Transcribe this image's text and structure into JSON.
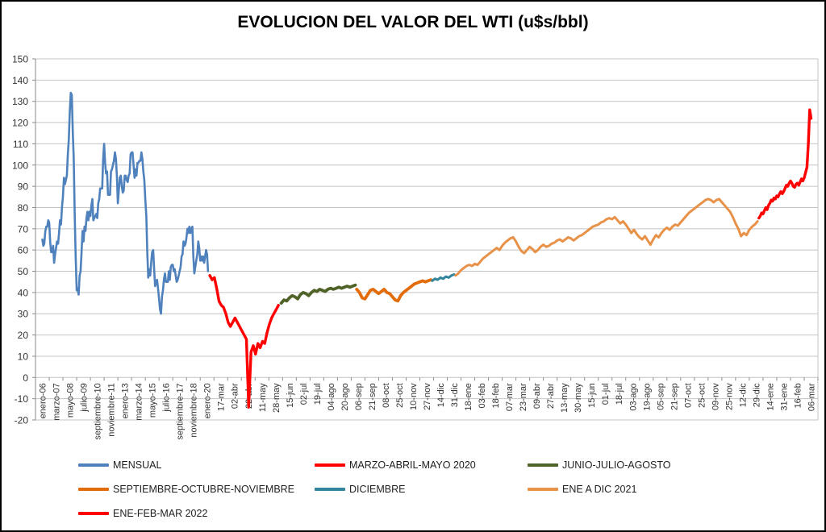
{
  "chart_data": {
    "type": "line",
    "title": "EVOLUCION DEL VALOR DEL WTI (u$s/bbl)",
    "ylabel": "",
    "xlabel": "",
    "ylim": [
      -20,
      150
    ],
    "grid": true,
    "legend_position": "bottom",
    "y_axis": {
      "min": -20,
      "max": 150,
      "step": 10,
      "tick_labels": [
        "150",
        "140",
        "130",
        "120",
        "110",
        "100",
        "90",
        "80",
        "70",
        "60",
        "50",
        "40",
        "30",
        "20",
        "10",
        "0",
        "-10",
        "-20"
      ]
    },
    "x_axis": {
      "tick_labels": [
        "enero-06",
        "marzo-07",
        "mayo-08",
        "julio-09",
        "septiembre-10",
        "noviembre-11",
        "enero-13",
        "marzo-14",
        "mayo-15",
        "julio-16",
        "septiembre-17",
        "noviembre-18",
        "enero-20",
        "17-mar",
        "02-abr",
        "22-abr",
        "11-may",
        "28-may",
        "15-jun",
        "02-jul",
        "19-jul",
        "04-ago",
        "20-ago",
        "06-sep",
        "21-sep",
        "08-oct",
        "25-oct",
        "10-nov",
        "27-nov",
        "14-dic",
        "31-dic",
        "18-ene",
        "03-feb",
        "18-feb",
        "07-mar",
        "23-mar",
        "09-abr",
        "27-abr",
        "13-may",
        "30-may",
        "15-jun",
        "01-jul",
        "18-jul",
        "03-ago",
        "19-ago",
        "05-sep",
        "21-sep",
        "07-oct",
        "25-oct",
        "09-nov",
        "25-nov",
        "12-dic",
        "29-dic",
        "14-ene",
        "31-ene",
        "16-feb",
        "06-mar"
      ]
    },
    "series": [
      {
        "name": "MENSUAL",
        "color": "#4F81BD",
        "width": 2.6,
        "x0": 0,
        "dx": 0.0714286,
        "values": [
          65,
          62,
          63,
          69,
          71,
          71,
          74,
          73,
          64,
          59,
          59,
          62,
          54,
          58,
          61,
          64,
          63,
          68,
          74,
          72,
          80,
          85,
          94,
          91,
          93,
          95,
          105,
          112,
          125,
          134,
          133,
          116,
          103,
          77,
          57,
          41,
          42,
          39,
          48,
          50,
          59,
          69,
          64,
          71,
          69,
          75,
          78,
          74,
          78,
          76,
          81,
          84,
          74,
          75,
          76,
          77,
          75,
          82,
          84,
          89,
          89,
          89,
          103,
          110,
          101,
          96,
          97,
          86,
          86,
          86,
          97,
          98,
          100,
          102,
          106,
          103,
          95,
          82,
          88,
          94,
          95,
          90,
          87,
          88,
          95,
          95,
          93,
          92,
          95,
          96,
          105,
          106,
          106,
          100,
          94,
          98,
          95,
          101,
          101,
          102,
          102,
          106,
          103,
          97,
          93,
          84,
          76,
          59,
          47,
          51,
          48,
          54,
          59,
          60,
          51,
          43,
          45,
          46,
          42,
          37,
          32,
          30,
          38,
          41,
          46,
          49,
          45,
          45,
          45,
          50,
          46,
          52,
          53,
          53,
          50,
          51,
          48,
          45,
          46,
          48,
          50,
          52,
          57,
          58,
          64,
          62,
          63,
          66,
          70,
          68,
          71,
          68,
          70,
          71,
          57,
          49,
          52,
          55,
          58,
          64,
          61,
          55,
          57,
          55,
          57,
          54,
          57,
          60,
          58,
          50
        ]
      },
      {
        "name": "MARZO-ABRIL-MAYO 2020",
        "color": "#FF0000",
        "width": 3.4,
        "x0": 12.2,
        "dx": 0.16667,
        "values": [
          48,
          46,
          47,
          42,
          36,
          34,
          33,
          30,
          26,
          24,
          26,
          28,
          26,
          24,
          22,
          20,
          18,
          -14,
          12,
          15,
          11,
          16,
          14,
          17,
          16,
          21,
          25,
          28,
          30,
          32,
          34
        ]
      },
      {
        "name": "JUNIO-JULIO-AGOSTO",
        "color": "#4F6228",
        "width": 3.8,
        "x0": 17.4,
        "dx": 0.2,
        "values": [
          35,
          36.5,
          36,
          37.5,
          38.5,
          38,
          37,
          39,
          40,
          39.5,
          38.5,
          40,
          41,
          40.5,
          41.5,
          41,
          40.5,
          41.5,
          42,
          41.5,
          42,
          42.5,
          42,
          42.5,
          43,
          42.5,
          43,
          43.5
        ]
      },
      {
        "name": "SEPTIEMBRE-OCTUBRE-NOVIEMBRE",
        "color": "#E36C0A",
        "width": 3.8,
        "x0": 22.9,
        "dx": 0.2,
        "values": [
          41.5,
          40,
          37.5,
          37,
          39,
          41,
          41.5,
          40.5,
          39.5,
          40.5,
          41.5,
          40,
          39.5,
          38,
          36.5,
          36,
          38.5,
          40,
          41,
          42,
          43,
          44,
          44.5,
          45,
          45.5,
          45,
          45.5,
          46
        ]
      },
      {
        "name": "DICIEMBRE",
        "color": "#31859C",
        "width": 3,
        "x0": 28.4,
        "dx": 0.2,
        "values": [
          45.5,
          46.5,
          46,
          47,
          46.5,
          47.5,
          47,
          48,
          48.5
        ]
      },
      {
        "name": "ENE A DIC 2021",
        "color": "#E89148",
        "width": 3,
        "x0": 30.1,
        "dx": 0.2,
        "values": [
          48,
          49,
          50.5,
          51.5,
          52.5,
          53,
          52.5,
          53.5,
          53,
          54.5,
          56,
          57,
          58,
          59,
          60,
          61,
          60,
          62,
          63.5,
          64.5,
          65.5,
          66,
          64,
          61.5,
          59.5,
          58.5,
          60,
          61.5,
          60.5,
          59,
          60,
          61.5,
          62.5,
          61.5,
          62,
          63,
          63.5,
          64.5,
          65,
          64,
          65,
          66,
          65.5,
          64.5,
          65.5,
          66.5,
          67,
          68,
          69,
          70,
          71,
          71.5,
          72,
          73,
          73.5,
          74.5,
          75,
          74.5,
          75.5,
          74,
          72.5,
          73.5,
          72,
          70,
          68,
          69.5,
          67.5,
          66,
          65,
          66.5,
          64.5,
          62.5,
          65,
          67,
          66,
          68,
          69.5,
          70.5,
          69.5,
          71,
          72,
          71.5,
          73,
          74.5,
          76,
          77.5,
          78.5,
          79.5,
          80.5,
          81.5,
          82.5,
          83.5,
          84,
          83.5,
          82.5,
          83.5,
          84,
          82.5,
          81,
          79.5,
          78,
          75.5,
          72.5,
          70,
          66.5,
          68,
          67,
          69.5,
          71,
          72,
          73.5
        ]
      },
      {
        "name": "ENE-FEB-MAR 2022",
        "color": "#FF0000",
        "width": 3.4,
        "x0": 52.2,
        "dx": 0.1,
        "values": [
          75,
          76,
          77.5,
          77,
          78.5,
          80,
          79,
          81,
          82,
          83.5,
          83,
          84.5,
          84,
          85.5,
          85,
          86.5,
          87.5,
          86.5,
          87.5,
          89,
          90.5,
          90,
          91.5,
          92.5,
          91.5,
          90,
          89.5,
          91,
          91.5,
          90.5,
          92,
          93.5,
          92.5,
          94,
          96.5,
          99,
          110,
          126,
          122
        ]
      }
    ]
  }
}
